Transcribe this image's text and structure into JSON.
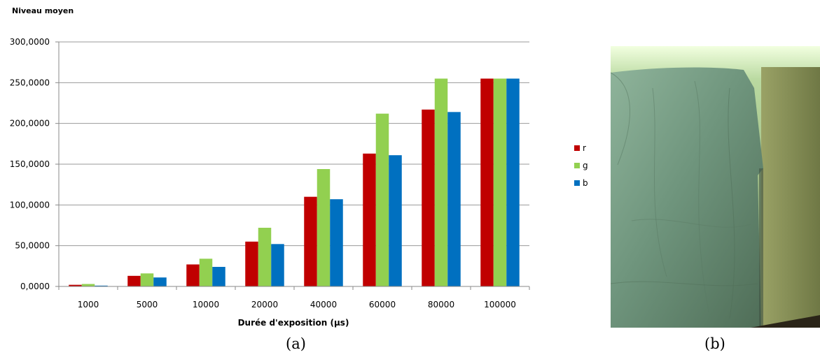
{
  "chart_data": {
    "type": "bar",
    "ylabel": "Niveau moyen",
    "xlabel": "Durée d'exposition (µs)",
    "categories": [
      "1000",
      "5000",
      "10000",
      "20000",
      "40000",
      "60000",
      "80000",
      "100000"
    ],
    "y_ticks": [
      "0,0000",
      "50,0000",
      "100,0000",
      "150,0000",
      "200,0000",
      "250,0000",
      "300,0000"
    ],
    "ylim": [
      0,
      300
    ],
    "grid": true,
    "legend_position": "right",
    "series": [
      {
        "name": "r",
        "color": "#c00000",
        "values": [
          2,
          13,
          27,
          55,
          110,
          163,
          217,
          255
        ]
      },
      {
        "name": "g",
        "color": "#92d050",
        "values": [
          3,
          16,
          34,
          72,
          144,
          212,
          255,
          255
        ]
      },
      {
        "name": "b",
        "color": "#0070c0",
        "values": [
          1,
          11,
          24,
          52,
          107,
          161,
          214,
          255
        ]
      }
    ]
  },
  "captions": {
    "a": "(a)",
    "b": "(b)"
  }
}
